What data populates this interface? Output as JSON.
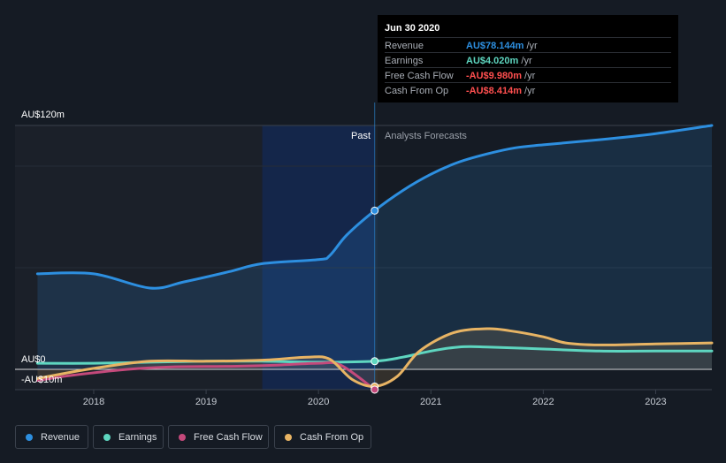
{
  "chart_data": {
    "type": "area",
    "y_unit_label_top": "AU$120m",
    "y_unit_label_zero": "AU$0",
    "y_unit_label_neg": "-AU$10m",
    "ylim": [
      -10,
      120
    ],
    "x_ticks": [
      "2018",
      "2019",
      "2020",
      "2021",
      "2022",
      "2023"
    ],
    "x_tick_values": [
      2018,
      2019,
      2020,
      2021,
      2022,
      2023
    ],
    "xlim": [
      2017.3,
      2023.5
    ],
    "split_x": 2020.5,
    "past_highlight_start": 2019.5,
    "region_labels": {
      "past": "Past",
      "forecast": "Analysts Forecasts"
    },
    "series": [
      {
        "name": "Revenue",
        "color": "#2d8fe0",
        "fill": true,
        "points": [
          [
            2017.5,
            47
          ],
          [
            2018.0,
            47
          ],
          [
            2018.5,
            40
          ],
          [
            2018.8,
            43
          ],
          [
            2019.2,
            48
          ],
          [
            2019.5,
            52
          ],
          [
            2020.0,
            54
          ],
          [
            2020.1,
            56
          ],
          [
            2020.25,
            66
          ],
          [
            2020.5,
            78.1
          ],
          [
            2020.75,
            88
          ],
          [
            2021.0,
            96
          ],
          [
            2021.25,
            102
          ],
          [
            2021.5,
            106
          ],
          [
            2021.75,
            109
          ],
          [
            2022.0,
            110.5
          ],
          [
            2022.5,
            113
          ],
          [
            2023.0,
            116
          ],
          [
            2023.5,
            120
          ]
        ]
      },
      {
        "name": "Earnings",
        "color": "#5ed6c0",
        "fill": false,
        "points": [
          [
            2017.5,
            3
          ],
          [
            2018.0,
            3
          ],
          [
            2018.5,
            3.5
          ],
          [
            2019.0,
            4
          ],
          [
            2019.5,
            4
          ],
          [
            2020.0,
            3.5
          ],
          [
            2020.5,
            4.0
          ],
          [
            2020.75,
            6
          ],
          [
            2021.0,
            9
          ],
          [
            2021.25,
            11
          ],
          [
            2021.5,
            11
          ],
          [
            2022.0,
            10
          ],
          [
            2022.5,
            9
          ],
          [
            2023.0,
            9
          ],
          [
            2023.5,
            9
          ]
        ]
      },
      {
        "name": "Free Cash Flow",
        "color": "#c4497b",
        "fill": false,
        "points": [
          [
            2017.5,
            -5.5
          ],
          [
            2017.8,
            -3
          ],
          [
            2018.3,
            0
          ],
          [
            2018.7,
            1.2
          ],
          [
            2019.2,
            1.5
          ],
          [
            2019.6,
            2
          ],
          [
            2020.0,
            3
          ],
          [
            2020.2,
            2
          ],
          [
            2020.5,
            -10
          ]
        ]
      },
      {
        "name": "Cash From Op",
        "color": "#e8b464",
        "fill": true,
        "points": [
          [
            2017.5,
            -4.5
          ],
          [
            2018.0,
            0.5
          ],
          [
            2018.5,
            4
          ],
          [
            2019.0,
            4
          ],
          [
            2019.5,
            4.5
          ],
          [
            2019.9,
            6
          ],
          [
            2020.1,
            5
          ],
          [
            2020.3,
            -5
          ],
          [
            2020.5,
            -8.4
          ],
          [
            2020.7,
            -3.5
          ],
          [
            2020.9,
            9
          ],
          [
            2021.2,
            18
          ],
          [
            2021.5,
            20
          ],
          [
            2021.7,
            19
          ],
          [
            2022.0,
            16
          ],
          [
            2022.2,
            13
          ],
          [
            2022.5,
            12
          ],
          [
            2023.0,
            12.5
          ],
          [
            2023.5,
            13
          ]
        ]
      }
    ],
    "markers": [
      {
        "series": "Revenue",
        "x": 2020.5,
        "y": 78.1
      },
      {
        "series": "Earnings",
        "x": 2020.5,
        "y": 4.0
      },
      {
        "series": "Cash From Op",
        "x": 2020.5,
        "y": -8.4
      },
      {
        "series": "Free Cash Flow",
        "x": 2020.5,
        "y": -10
      }
    ]
  },
  "tooltip": {
    "date": "Jun 30 2020",
    "rows": [
      {
        "name": "Revenue",
        "value": "AU$78.144m",
        "unit": " /yr",
        "color": "#2d8fe0"
      },
      {
        "name": "Earnings",
        "value": "AU$4.020m",
        "unit": " /yr",
        "color": "#5ed6c0"
      },
      {
        "name": "Free Cash Flow",
        "value": "-AU$9.980m",
        "unit": " /yr",
        "color": "#ff4f4f"
      },
      {
        "name": "Cash From Op",
        "value": "-AU$8.414m",
        "unit": " /yr",
        "color": "#ff4f4f"
      }
    ]
  },
  "legend": [
    {
      "label": "Revenue",
      "color": "#2d8fe0"
    },
    {
      "label": "Earnings",
      "color": "#5ed6c0"
    },
    {
      "label": "Free Cash Flow",
      "color": "#c4497b"
    },
    {
      "label": "Cash From Op",
      "color": "#e8b464"
    }
  ]
}
